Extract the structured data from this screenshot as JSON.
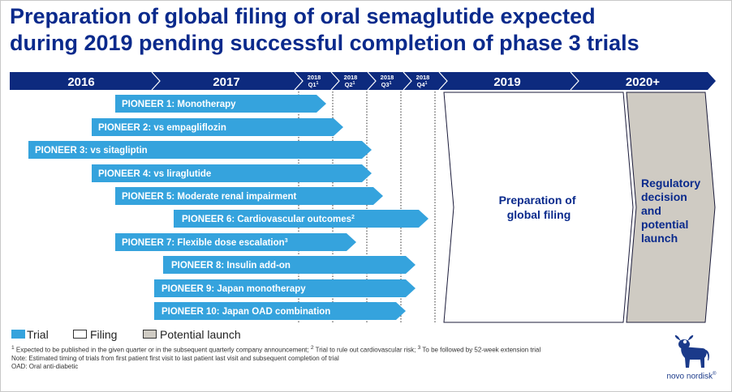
{
  "title": {
    "line1": "Preparation of global filing of oral semaglutide expected",
    "line2": "during 2019 pending successful completion of phase 3 trials"
  },
  "timeline": {
    "year_2016": "2016",
    "year_2017": "2017",
    "q1": {
      "year": "2018",
      "label": "Q1",
      "sup": "1"
    },
    "q2": {
      "year": "2018",
      "label": "Q2",
      "sup": "1"
    },
    "q3": {
      "year": "2018",
      "label": "Q3",
      "sup": "1"
    },
    "q4": {
      "year": "2018",
      "label": "Q4",
      "sup": "1"
    },
    "year_2019": "2019",
    "year_2020": "2020+"
  },
  "trials": [
    {
      "label": "PIONEER 1: Monotherapy",
      "sup": ""
    },
    {
      "label": "PIONEER 2: vs empagliflozin",
      "sup": ""
    },
    {
      "label": "PIONEER 3: vs sitagliptin",
      "sup": ""
    },
    {
      "label": "PIONEER 4: vs liraglutide",
      "sup": ""
    },
    {
      "label": "PIONEER 5: Moderate renal impairment",
      "sup": ""
    },
    {
      "label": "PIONEER 6: Cardiovascular outcomes",
      "sup": "2"
    },
    {
      "label": "PIONEER 7: Flexible dose escalation",
      "sup": "3"
    },
    {
      "label": "PIONEER 8: Insulin add-on",
      "sup": ""
    },
    {
      "label": "PIONEER 9: Japan monotherapy",
      "sup": ""
    },
    {
      "label": "PIONEER 10: Japan OAD combination",
      "sup": ""
    }
  ],
  "filing": {
    "line1": "Preparation of",
    "line2": "global filing"
  },
  "launch": {
    "line1": "Regulatory",
    "line2": "decision",
    "line3": "and",
    "line4": "potential",
    "line5": "launch"
  },
  "legend": {
    "trial": "Trial",
    "filing": "Filing",
    "launch": "Potential launch"
  },
  "notes": {
    "line1_sup1": "1",
    "line1_a": " Expected to be published in the given quarter or in the subsequent quarterly company announcement;",
    "line1_sup2": "2",
    "line1_b": " Trial to rule out cardiovascular risk;",
    "line1_sup3": "3",
    "line1_c": " To be followed by 52-week extension trial",
    "line2": "Note: Estimated timing of trials from first patient first visit to last patient last visit and subsequent completion of trial",
    "line3": "OAD: Oral anti-diabetic"
  },
  "logo": {
    "text": "novo nordisk",
    "mark": "®"
  },
  "colors": {
    "navy": "#0a2a8c",
    "timeline_bar": "#0d2a7e",
    "trial": "#35a3dd",
    "launch": "#cfcbc3",
    "logo_blue": "#1b3a8a"
  }
}
